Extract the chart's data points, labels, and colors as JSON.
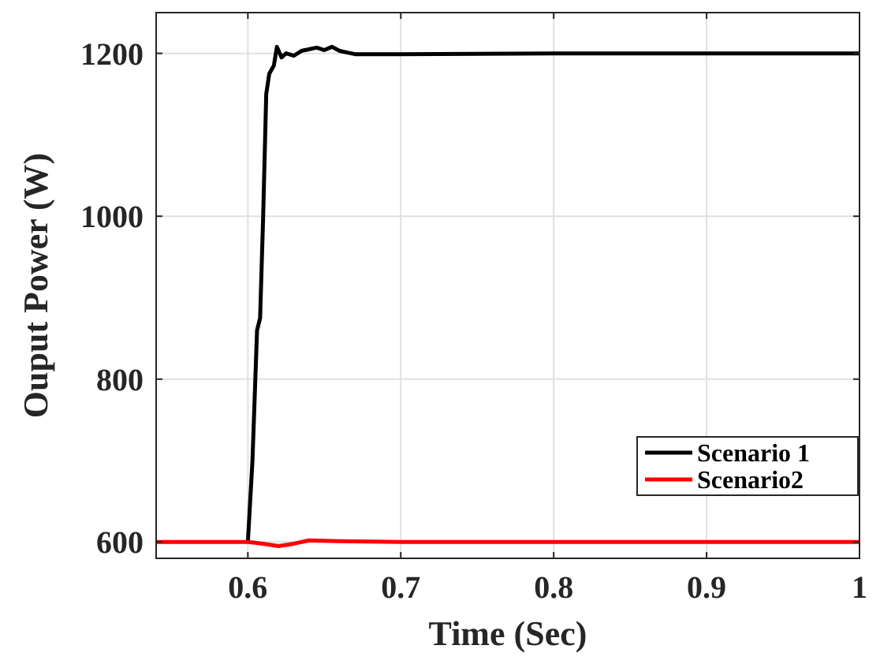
{
  "chart_data": {
    "type": "line",
    "xlabel": "Time (Sec)",
    "ylabel": "Ouput Power (W)",
    "xlim": [
      0.54,
      1
    ],
    "xticks": [
      0.6,
      0.7,
      0.8,
      0.9,
      1
    ],
    "ylim": [
      580,
      1250
    ],
    "yticks": [
      600,
      800,
      1000,
      1200
    ],
    "grid": true,
    "legend": "bottom right",
    "series": [
      {
        "name": "Scenario 1",
        "color": "#000000",
        "x": [
          0.6,
          0.603,
          0.606,
          0.608,
          0.61,
          0.612,
          0.614,
          0.617,
          0.619,
          0.622,
          0.625,
          0.63,
          0.635,
          0.64,
          0.645,
          0.65,
          0.655,
          0.66,
          0.665,
          0.67,
          0.7,
          0.8,
          0.9,
          1
        ],
        "values": [
          600,
          700,
          860,
          875,
          1000,
          1150,
          1175,
          1185,
          1208,
          1195,
          1200,
          1197,
          1203,
          1205,
          1207,
          1204,
          1208,
          1203,
          1201,
          1199,
          1199,
          1200,
          1200,
          1200
        ]
      },
      {
        "name": "Scenario2",
        "color": "#ff0000",
        "x": [
          0.54,
          0.6,
          0.61,
          0.62,
          0.63,
          0.64,
          0.66,
          0.7,
          0.8,
          0.9,
          1
        ],
        "values": [
          600,
          600,
          598,
          595,
          598,
          602,
          601,
          600,
          600,
          600,
          600
        ]
      }
    ]
  }
}
